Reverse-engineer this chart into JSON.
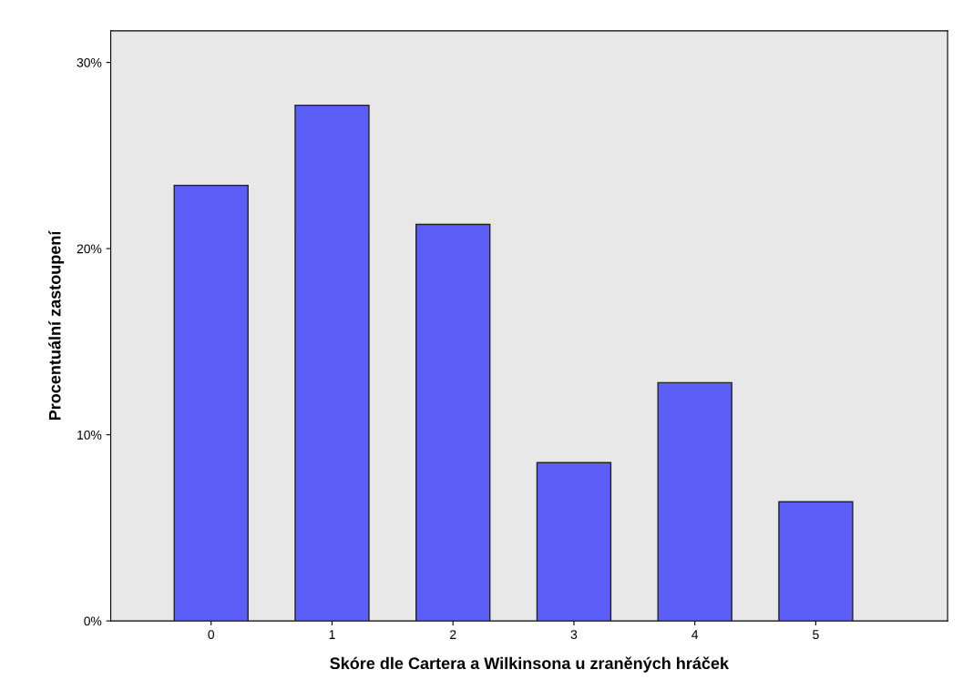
{
  "chart_data": {
    "type": "bar",
    "xlabel": "Skóre dle Cartera a Wilkinsona u zraněných hráček",
    "ylabel": "Procentuální zastoupení",
    "categories": [
      "0",
      "1",
      "2",
      "3",
      "4",
      "5"
    ],
    "values": [
      23.4,
      27.7,
      21.3,
      8.5,
      12.8,
      6.4
    ],
    "color": "#5b5ef7",
    "ylim": [
      0,
      31.7
    ],
    "yticks": [
      {
        "value": 0,
        "label": "0%"
      },
      {
        "value": 10,
        "label": "10%"
      },
      {
        "value": 20,
        "label": "20%"
      },
      {
        "value": 30,
        "label": "30%"
      }
    ],
    "grid": false
  }
}
